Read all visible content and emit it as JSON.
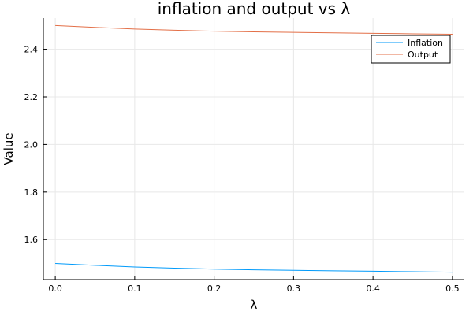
{
  "chart_data": {
    "type": "line",
    "title": "inflation and output vs λ",
    "xlabel": "λ",
    "ylabel": "Value",
    "xlim": [
      -0.015,
      0.515
    ],
    "ylim": [
      1.432,
      2.531
    ],
    "xticks": [
      0.0,
      0.1,
      0.2,
      0.3,
      0.4,
      0.5
    ],
    "xtick_labels": [
      "0.0",
      "0.1",
      "0.2",
      "0.3",
      "0.4",
      "0.5"
    ],
    "yticks": [
      1.6,
      1.8,
      2.0,
      2.2,
      2.4
    ],
    "ytick_labels": [
      "1.6",
      "1.8",
      "2.0",
      "2.2",
      "2.4"
    ],
    "grid": true,
    "legend_position": "top-right",
    "x": [
      0.0,
      0.05,
      0.1,
      0.15,
      0.2,
      0.25,
      0.3,
      0.35,
      0.4,
      0.45,
      0.5
    ],
    "series": [
      {
        "name": "Inflation",
        "color": "#009AFA",
        "values": [
          1.5,
          1.492,
          1.485,
          1.48,
          1.476,
          1.473,
          1.471,
          1.469,
          1.467,
          1.465,
          1.463
        ]
      },
      {
        "name": "Output",
        "color": "#E36F47",
        "values": [
          2.5,
          2.492,
          2.485,
          2.48,
          2.476,
          2.473,
          2.471,
          2.469,
          2.467,
          2.465,
          2.463
        ]
      }
    ]
  }
}
